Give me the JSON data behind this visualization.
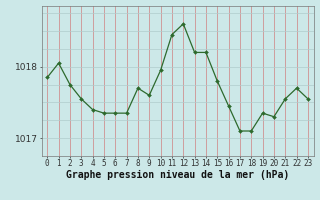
{
  "x": [
    0,
    1,
    2,
    3,
    4,
    5,
    6,
    7,
    8,
    9,
    10,
    11,
    12,
    13,
    14,
    15,
    16,
    17,
    18,
    19,
    20,
    21,
    22,
    23
  ],
  "y": [
    1017.85,
    1018.05,
    1017.75,
    1017.55,
    1017.4,
    1017.35,
    1017.35,
    1017.35,
    1017.7,
    1017.6,
    1017.95,
    1018.45,
    1018.6,
    1018.2,
    1018.2,
    1017.8,
    1017.45,
    1017.1,
    1017.1,
    1017.35,
    1017.3,
    1017.55,
    1017.7,
    1017.55
  ],
  "line_color": "#2d6a2d",
  "marker": "D",
  "marker_size": 2.0,
  "bg_color": "#cce8e8",
  "vgrid_color": "#d08080",
  "hgrid_color": "#b0cccc",
  "xlabel": "Graphe pression niveau de la mer (hPa)",
  "xlabel_fontsize": 7,
  "tick_fontsize": 5.5,
  "yticks": [
    1017.0,
    1018.0
  ],
  "ytick_labels": [
    "1017",
    "1018"
  ],
  "ylim": [
    1016.75,
    1018.85
  ],
  "xlim": [
    -0.5,
    23.5
  ]
}
